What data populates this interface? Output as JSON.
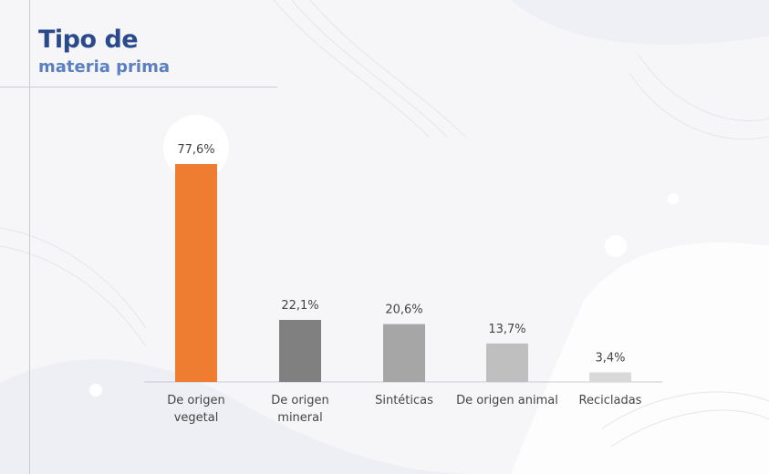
{
  "header": {
    "title": "Tipo de",
    "subtitle": "materia prima"
  },
  "colors": {
    "title": "#2b4a8c",
    "subtitle": "#5b7fc0",
    "bars": [
      "#ef7d31",
      "#808080",
      "#a6a6a6",
      "#bfbfbf",
      "#d9d9d9"
    ]
  },
  "chart_data": {
    "type": "bar",
    "categories": [
      [
        "De origen",
        "vegetal"
      ],
      [
        "De origen",
        "mineral"
      ],
      [
        "Sintéticas"
      ],
      [
        "De origen animal"
      ],
      [
        "Recicladas"
      ]
    ],
    "values": [
      77.6,
      22.1,
      20.6,
      13.7,
      3.4
    ],
    "value_labels": [
      "77,6%",
      "22,1%",
      "20,6%",
      "13,7%",
      "3,4%"
    ],
    "ylim": [
      0,
      77.6
    ],
    "grid": false,
    "legend": "none"
  }
}
